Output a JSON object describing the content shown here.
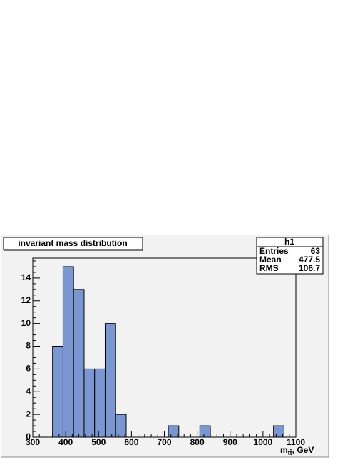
{
  "chart_data": {
    "type": "histogram",
    "title": "invariant mass distribution",
    "x_label": {
      "main": "m",
      "sub": "tt̄",
      "unit": ", GeV"
    },
    "bins": [
      360,
      392,
      424,
      456,
      488,
      520,
      552,
      584,
      616,
      648,
      680,
      712,
      744,
      776,
      808,
      840,
      872,
      904,
      936,
      968,
      1000,
      1032,
      1064
    ],
    "counts": [
      8,
      15,
      13,
      6,
      6,
      10,
      2,
      0,
      0,
      0,
      0,
      1,
      0,
      0,
      1,
      0,
      0,
      0,
      0,
      0,
      0,
      1
    ],
    "color": "#7b97d2",
    "xlim": [
      300,
      1100
    ],
    "xticks": [
      300,
      400,
      500,
      600,
      700,
      800,
      900,
      1000,
      1100
    ],
    "ylim": [
      0,
      15.75
    ],
    "yticks": [
      0,
      2,
      4,
      6,
      8,
      10,
      12,
      14
    ],
    "stats": {
      "name": "h1",
      "rows": [
        [
          "Entries",
          "63"
        ],
        [
          "Mean",
          "477.5"
        ],
        [
          "RMS",
          "106.7"
        ]
      ]
    }
  }
}
